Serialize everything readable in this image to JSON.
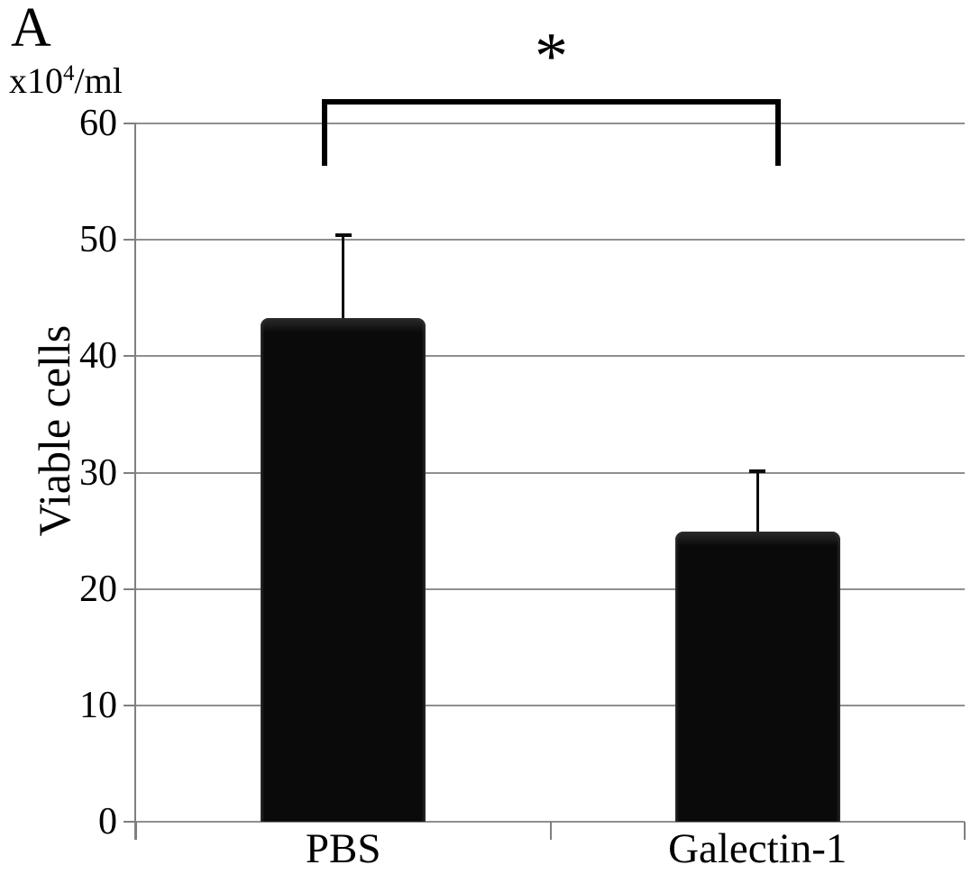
{
  "panel_label": "A",
  "chart_data": {
    "type": "bar",
    "title": "",
    "categories": [
      "PBS",
      "Galectin-1"
    ],
    "values": [
      43.3,
      24.9
    ],
    "error_upper": [
      7.1,
      5.2
    ],
    "ylabel": "Viable cells",
    "y_unit": {
      "prefix": "x10",
      "exponent": "4",
      "suffix": "/ml"
    },
    "y_ticks": [
      0,
      10,
      20,
      30,
      40,
      50,
      60
    ],
    "ylim": [
      0,
      60
    ],
    "grid": true,
    "legend": "none",
    "significance": {
      "symbol": "*",
      "between": [
        "PBS",
        "Galectin-1"
      ]
    },
    "bar_color": "#0a0a0a"
  },
  "colors": {
    "background": "#ffffff",
    "grid": "#8f8f8f",
    "axis": "#7f7f7f",
    "bar": "#0a0a0a",
    "text": "#000000"
  }
}
